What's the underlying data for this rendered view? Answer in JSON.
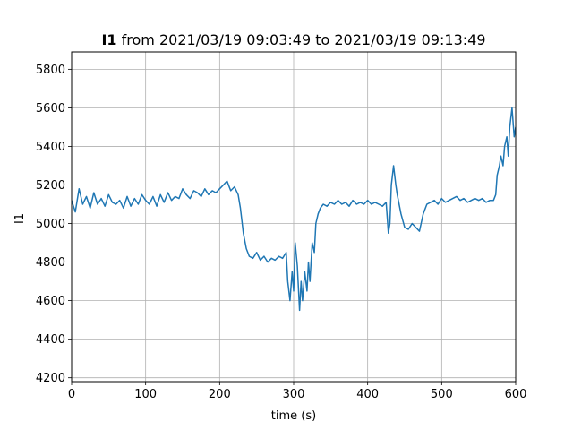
{
  "chart_data": {
    "type": "line",
    "title_bold": "I1",
    "title_rest": " from 2021/03/19 09:03:49 to 2021/03/19 09:13:49",
    "xlabel": "time (s)",
    "ylabel": "I1",
    "xlim": [
      0,
      600
    ],
    "ylim": [
      4180,
      5890
    ],
    "xticks": [
      0,
      100,
      200,
      300,
      400,
      500,
      600
    ],
    "yticks": [
      4200,
      4400,
      4600,
      4800,
      5000,
      5200,
      5400,
      5600,
      5800
    ],
    "grid": true,
    "color": "#1f77b4",
    "series": [
      {
        "x": [
          0,
          5,
          10,
          15,
          20,
          25,
          30,
          35,
          40,
          45,
          50,
          55,
          60,
          65,
          70,
          75,
          80,
          85,
          90,
          95,
          100,
          105,
          110,
          115,
          120,
          125,
          130,
          135,
          140,
          145,
          150,
          155,
          160,
          165,
          170,
          175,
          180,
          185,
          190,
          195,
          200,
          205,
          210,
          215,
          220,
          225,
          228,
          232,
          236,
          240,
          245,
          250,
          255,
          260,
          265,
          270,
          275,
          280,
          285,
          290,
          292,
          295,
          298,
          300,
          302,
          305,
          308,
          310,
          312,
          315,
          318,
          320,
          322,
          325,
          328,
          330,
          333,
          336,
          340,
          345,
          350,
          355,
          360,
          365,
          370,
          375,
          380,
          385,
          390,
          395,
          400,
          405,
          410,
          415,
          420,
          425,
          428,
          430,
          432,
          435,
          438,
          440,
          445,
          450,
          455,
          460,
          465,
          470,
          475,
          480,
          485,
          490,
          495,
          500,
          505,
          510,
          515,
          520,
          525,
          530,
          535,
          540,
          545,
          550,
          555,
          560,
          565,
          570,
          573,
          575,
          578,
          580,
          583,
          585,
          588,
          590,
          592,
          595,
          598,
          600
        ],
        "y": [
          5120,
          5060,
          5180,
          5100,
          5140,
          5080,
          5160,
          5100,
          5130,
          5090,
          5150,
          5110,
          5100,
          5120,
          5080,
          5140,
          5090,
          5130,
          5100,
          5150,
          5120,
          5100,
          5140,
          5090,
          5150,
          5110,
          5160,
          5120,
          5140,
          5130,
          5180,
          5150,
          5130,
          5170,
          5160,
          5140,
          5180,
          5150,
          5170,
          5160,
          5180,
          5200,
          5220,
          5170,
          5190,
          5150,
          5080,
          4950,
          4870,
          4830,
          4820,
          4850,
          4810,
          4830,
          4800,
          4820,
          4810,
          4830,
          4820,
          4850,
          4700,
          4600,
          4750,
          4650,
          4900,
          4780,
          4550,
          4700,
          4600,
          4750,
          4650,
          4800,
          4700,
          4900,
          4850,
          5000,
          5050,
          5080,
          5100,
          5090,
          5110,
          5100,
          5120,
          5100,
          5110,
          5090,
          5120,
          5100,
          5110,
          5100,
          5120,
          5100,
          5110,
          5100,
          5090,
          5110,
          4950,
          5000,
          5200,
          5300,
          5200,
          5150,
          5050,
          4980,
          4970,
          5000,
          4980,
          4960,
          5050,
          5100,
          5110,
          5120,
          5100,
          5130,
          5110,
          5120,
          5130,
          5140,
          5120,
          5130,
          5110,
          5120,
          5130,
          5120,
          5130,
          5110,
          5120,
          5120,
          5150,
          5250,
          5300,
          5350,
          5300,
          5400,
          5450,
          5350,
          5500,
          5600,
          5450,
          5500
        ]
      }
    ]
  }
}
